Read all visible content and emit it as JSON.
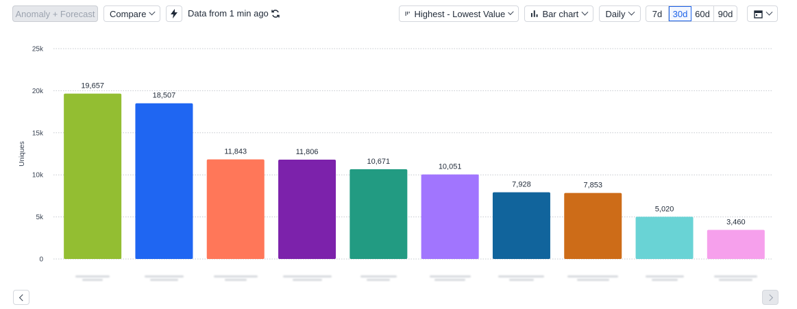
{
  "toolbar": {
    "anomaly_label": "Anomaly + Forecast",
    "compare_label": "Compare",
    "status_text": "Data from 1 min ago",
    "sort_label": "Highest - Lowest Value",
    "chart_type_label": "Bar chart",
    "interval_label": "Daily",
    "ranges": [
      "7d",
      "30d",
      "60d",
      "90d"
    ],
    "active_range": "30d"
  },
  "chart_data": {
    "type": "bar",
    "categories": [
      "",
      "",
      "",
      "",
      "",
      "",
      "",
      "",
      "",
      ""
    ],
    "values": [
      19657,
      18507,
      11843,
      11806,
      10671,
      10051,
      7928,
      7853,
      5020,
      3460
    ],
    "value_labels": [
      "19,657",
      "18,507",
      "11,843",
      "11,806",
      "10,671",
      "10,051",
      "7,928",
      "7,853",
      "5,020",
      "3,460"
    ],
    "colors": [
      "#93be32",
      "#1f66f2",
      "#ff7759",
      "#7c22ab",
      "#229b82",
      "#a175fe",
      "#11649c",
      "#cd6c18",
      "#69d3d5",
      "#f6a0ec"
    ],
    "title": "",
    "xlabel": "",
    "ylabel": "Uniques",
    "ylim": [
      0,
      25000
    ],
    "yticks": [
      0,
      5000,
      10000,
      15000,
      20000,
      25000
    ],
    "ytick_labels": [
      "0",
      "5k",
      "10k",
      "15k",
      "20k",
      "25k"
    ],
    "grid": true
  }
}
